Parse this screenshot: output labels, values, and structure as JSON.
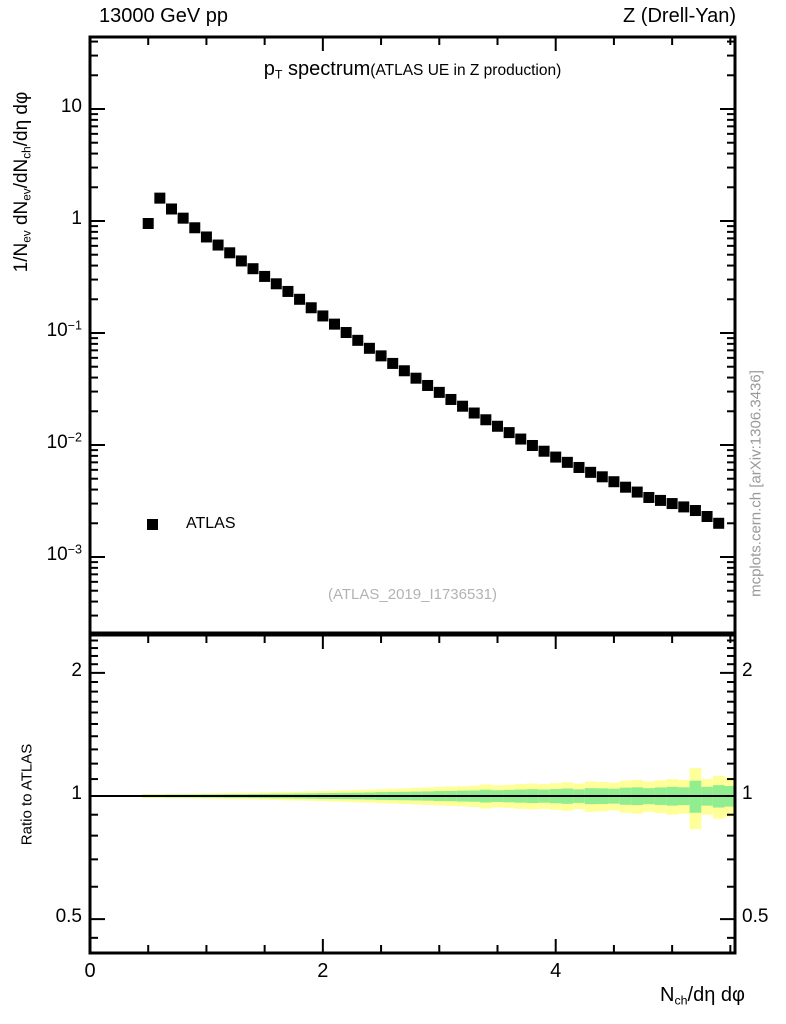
{
  "header": {
    "left": "13000 GeV pp",
    "right": "Z (Drell-Yan)"
  },
  "title": {
    "main_parts": [
      {
        "t": "p"
      },
      {
        "t": "T",
        "sub": true
      },
      {
        "t": " spectrum"
      }
    ],
    "paren": "(ATLAS UE in Z production)"
  },
  "axes": {
    "top_ylabel_parts": [
      {
        "t": "1/N"
      },
      {
        "t": "ev",
        "sub": true
      },
      {
        "t": " dN"
      },
      {
        "t": "ev",
        "sub": true
      },
      {
        "t": "/dN"
      },
      {
        "t": "ch",
        "sub": true
      },
      {
        "t": "/dη dφ"
      }
    ],
    "bottom_ylabel": "Ratio to ATLAS",
    "xlabel_parts": [
      {
        "t": "N"
      },
      {
        "t": "ch",
        "sub": true
      },
      {
        "t": "/dη dφ"
      }
    ]
  },
  "legend": {
    "label": "ATLAS"
  },
  "watermark": "(ATLAS_2019_I1736531)",
  "side_text": "mcplots.cern.ch [arXiv:1306.3436]",
  "colors": {
    "marker": "#000000",
    "band_outer": "#ffff99",
    "band_inner": "#90ee90",
    "gray_text": "#999999",
    "watermark_gray": "#b3b3b3",
    "frame": "#000000"
  },
  "chart_data": {
    "type": "scatter",
    "title": "p_T spectrum (ATLAS UE in Z production)",
    "xlabel": "N_ch/deta dphi",
    "ylabel": "1/N_ev dN_ev/dN_ch/deta dphi",
    "ratio_label": "Ratio to ATLAS",
    "xlim": [
      0,
      5.54
    ],
    "ylim_top": [
      0.000205,
      44
    ],
    "ylim_ratio": [
      0.41,
      2.47
    ],
    "log_y_top": true,
    "log_y_ratio": true,
    "x_ticks": [
      {
        "v": 0,
        "t": "0"
      },
      {
        "v": 2,
        "t": "2"
      },
      {
        "v": 4,
        "t": "4"
      }
    ],
    "x_minor_ticks": [
      0.5,
      1,
      1.5,
      2.5,
      3,
      3.5,
      4.5,
      5,
      5.5
    ],
    "top_y_ticks": [
      {
        "v": 10,
        "base": "10",
        "exp": ""
      },
      {
        "v": 1,
        "base": "1",
        "exp": ""
      },
      {
        "v": 0.1,
        "base": "10",
        "exp": "−1"
      },
      {
        "v": 0.01,
        "base": "10",
        "exp": "−2"
      },
      {
        "v": 0.001,
        "base": "10",
        "exp": "−3"
      }
    ],
    "bottom_y_ticks": [
      {
        "v": 2,
        "t": "2"
      },
      {
        "v": 1,
        "t": "1"
      },
      {
        "v": 0.5,
        "t": "0.5"
      }
    ],
    "bottom_y_minor_ticks": [
      0.45,
      0.6,
      0.7,
      0.8,
      0.9,
      1.1,
      1.2,
      1.3,
      1.4,
      1.5,
      1.6,
      1.7,
      1.8,
      1.9,
      2.1,
      2.2,
      2.3,
      2.4
    ],
    "series": [
      {
        "name": "ATLAS",
        "marker": "filled-square",
        "color": "#000000",
        "x": [
          0.5,
          0.6,
          0.7,
          0.8,
          0.9,
          1.0,
          1.1,
          1.2,
          1.3,
          1.4,
          1.5,
          1.6,
          1.7,
          1.8,
          1.9,
          2.0,
          2.1,
          2.2,
          2.3,
          2.4,
          2.5,
          2.6,
          2.7,
          2.8,
          2.9,
          3.0,
          3.1,
          3.2,
          3.3,
          3.4,
          3.5,
          3.6,
          3.7,
          3.8,
          3.9,
          4.0,
          4.1,
          4.2,
          4.3,
          4.4,
          4.5,
          4.6,
          4.7,
          4.8,
          4.9,
          5.0,
          5.1,
          5.2,
          5.3,
          5.4
        ],
        "y": [
          0.95,
          1.6,
          1.28,
          1.06,
          0.87,
          0.72,
          0.61,
          0.52,
          0.44,
          0.375,
          0.32,
          0.275,
          0.235,
          0.2,
          0.168,
          0.142,
          0.12,
          0.101,
          0.086,
          0.073,
          0.0625,
          0.0535,
          0.046,
          0.0395,
          0.034,
          0.0295,
          0.0255,
          0.0222,
          0.0193,
          0.0168,
          0.0147,
          0.0129,
          0.0113,
          0.0099,
          0.0088,
          0.0078,
          0.007,
          0.0063,
          0.0057,
          0.0052,
          0.0047,
          0.0042,
          0.0038,
          0.0034,
          0.0032,
          0.003,
          0.0028,
          0.0026,
          0.0023,
          0.002
        ]
      }
    ],
    "ratio": {
      "reference_line": 1.0,
      "bin_width": 0.1,
      "centers": [
        0.5,
        0.6,
        0.7,
        0.8,
        0.9,
        1.0,
        1.1,
        1.2,
        1.3,
        1.4,
        1.5,
        1.6,
        1.7,
        1.8,
        1.9,
        2.0,
        2.1,
        2.2,
        2.3,
        2.4,
        2.5,
        2.6,
        2.7,
        2.8,
        2.9,
        3.0,
        3.1,
        3.2,
        3.3,
        3.4,
        3.5,
        3.6,
        3.7,
        3.8,
        3.9,
        4.0,
        4.1,
        4.2,
        4.3,
        4.4,
        4.5,
        4.6,
        4.7,
        4.8,
        4.9,
        5.0,
        5.1,
        5.2,
        5.3,
        5.4,
        5.5
      ],
      "outer_halfwidth": [
        0.012,
        0.012,
        0.013,
        0.013,
        0.014,
        0.015,
        0.016,
        0.017,
        0.018,
        0.019,
        0.021,
        0.022,
        0.024,
        0.025,
        0.027,
        0.029,
        0.031,
        0.033,
        0.035,
        0.037,
        0.04,
        0.042,
        0.044,
        0.047,
        0.049,
        0.052,
        0.055,
        0.057,
        0.06,
        0.068,
        0.062,
        0.065,
        0.07,
        0.073,
        0.07,
        0.075,
        0.08,
        0.072,
        0.085,
        0.082,
        0.078,
        0.09,
        0.095,
        0.085,
        0.092,
        0.1,
        0.095,
        0.17,
        0.1,
        0.12,
        0.11
      ],
      "inner_halfwidth": [
        0.007,
        0.007,
        0.008,
        0.008,
        0.008,
        0.009,
        0.009,
        0.01,
        0.01,
        0.011,
        0.012,
        0.013,
        0.013,
        0.014,
        0.015,
        0.016,
        0.017,
        0.018,
        0.019,
        0.02,
        0.022,
        0.023,
        0.024,
        0.025,
        0.026,
        0.028,
        0.029,
        0.031,
        0.032,
        0.036,
        0.033,
        0.035,
        0.037,
        0.039,
        0.037,
        0.04,
        0.043,
        0.038,
        0.045,
        0.044,
        0.042,
        0.048,
        0.05,
        0.045,
        0.049,
        0.053,
        0.05,
        0.09,
        0.053,
        0.063,
        0.058
      ]
    }
  }
}
